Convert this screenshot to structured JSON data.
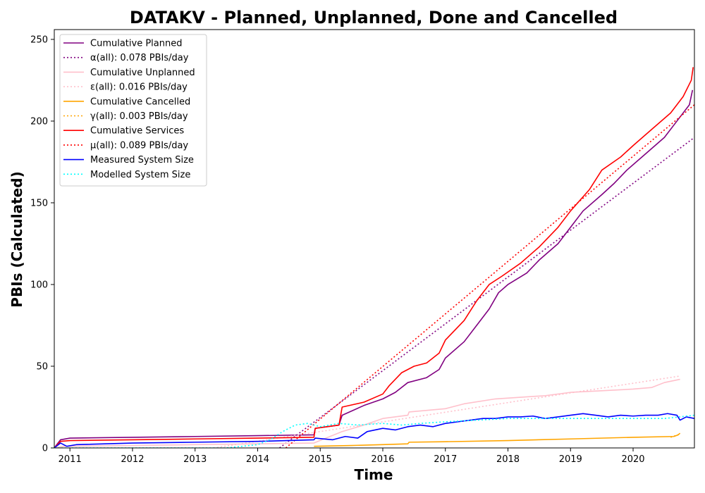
{
  "chart_data": {
    "type": "line",
    "title": "DATAKV - Planned, Unplanned, Done  and Cancelled",
    "xlabel": "Time",
    "ylabel": "PBIs (Calculated)",
    "xlim": [
      2010.75,
      2020.98
    ],
    "ylim": [
      0,
      256
    ],
    "x_ticks": [
      2011,
      2012,
      2013,
      2014,
      2015,
      2016,
      2017,
      2018,
      2019,
      2020
    ],
    "y_ticks": [
      0,
      50,
      100,
      150,
      200,
      250
    ],
    "legend_position": "upper left",
    "grid": false,
    "series": [
      {
        "name": "Cumulative Planned",
        "style": "solid",
        "color": "#800080",
        "x": [
          2010.75,
          2010.85,
          2011.0,
          2012.0,
          2013.0,
          2014.0,
          2014.9,
          2014.92,
          2015.3,
          2015.35,
          2015.7,
          2016.0,
          2016.2,
          2016.4,
          2016.7,
          2016.9,
          2017.0,
          2017.3,
          2017.5,
          2017.7,
          2017.85,
          2018.0,
          2018.3,
          2018.5,
          2018.8,
          2019.0,
          2019.2,
          2019.5,
          2019.7,
          2019.9,
          2020.2,
          2020.5,
          2020.7,
          2020.9,
          2020.95
        ],
        "y": [
          0,
          5,
          6,
          6.5,
          7,
          7.5,
          8,
          12,
          14,
          20,
          26,
          30,
          34,
          40,
          43,
          48,
          55,
          65,
          75,
          85,
          95,
          100,
          107,
          115,
          125,
          135,
          145,
          155,
          162,
          170,
          180,
          190,
          200,
          210,
          219
        ]
      },
      {
        "name": "α(all): 0.078 PBIs/day",
        "style": "dotted",
        "color": "#800080",
        "x": [
          2014.35,
          2020.98
        ],
        "y": [
          0,
          190
        ]
      },
      {
        "name": "Cumulative Unplanned",
        "style": "solid",
        "color": "#ffc0cb",
        "x": [
          2010.75,
          2010.9,
          2012.0,
          2013.0,
          2014.0,
          2014.9,
          2015.35,
          2015.7,
          2016.0,
          2016.4,
          2016.42,
          2017.0,
          2017.3,
          2017.8,
          2018.2,
          2018.6,
          2019.0,
          2019.5,
          2020.0,
          2020.3,
          2020.5,
          2020.75
        ],
        "y": [
          0,
          1,
          1.5,
          2,
          2.5,
          3,
          10,
          14,
          18,
          20,
          22,
          24,
          27,
          30,
          31,
          32,
          34,
          35,
          36,
          37,
          40,
          42
        ]
      },
      {
        "name": "ε(all): 0.016 PBIs/day",
        "style": "dotted",
        "color": "#ffc0cb",
        "x": [
          2013.3,
          2020.75
        ],
        "y": [
          0,
          44
        ]
      },
      {
        "name": "Cumulative Cancelled",
        "style": "solid",
        "color": "#ffa500",
        "x": [
          2014.9,
          2015.5,
          2016.0,
          2016.4,
          2016.42,
          2017.0,
          2018.0,
          2019.0,
          2020.0,
          2020.65,
          2020.72,
          2020.75
        ],
        "y": [
          1,
          1.5,
          2,
          2.5,
          3.5,
          3.8,
          4.5,
          5.5,
          6.5,
          7,
          8,
          9
        ]
      },
      {
        "name": "γ(all): 0.003 PBIs/day",
        "style": "dotted",
        "color": "#ffa500",
        "x": [
          2020.6,
          2020.75
        ],
        "y": [
          6.5,
          8.5
        ]
      },
      {
        "name": "Cumulative Services",
        "style": "solid",
        "color": "#ff0000",
        "x": [
          2010.75,
          2010.85,
          2011.0,
          2012.0,
          2013.0,
          2014.0,
          2014.9,
          2014.92,
          2015.3,
          2015.35,
          2015.7,
          2016.0,
          2016.1,
          2016.3,
          2016.5,
          2016.7,
          2016.9,
          2017.0,
          2017.3,
          2017.5,
          2017.7,
          2017.9,
          2018.2,
          2018.5,
          2018.8,
          2019.0,
          2019.3,
          2019.5,
          2019.8,
          2020.0,
          2020.3,
          2020.6,
          2020.8,
          2020.93,
          2020.96
        ],
        "y": [
          0,
          4,
          4.5,
          5,
          5.5,
          6,
          6.5,
          12,
          14,
          25,
          28,
          33,
          38,
          46,
          50,
          52,
          58,
          66,
          78,
          90,
          100,
          105,
          113,
          123,
          135,
          145,
          158,
          170,
          178,
          185,
          195,
          205,
          215,
          225,
          233
        ]
      },
      {
        "name": "μ(all): 0.089 PBIs/day",
        "style": "dotted",
        "color": "#ff0000",
        "x": [
          2014.45,
          2020.98
        ],
        "y": [
          0,
          210
        ]
      },
      {
        "name": "Measured System Size",
        "style": "solid",
        "color": "#0000ff",
        "x": [
          2010.75,
          2010.85,
          2010.95,
          2011.1,
          2012.0,
          2013.0,
          2014.0,
          2014.9,
          2014.92,
          2015.2,
          2015.4,
          2015.6,
          2015.75,
          2016.0,
          2016.2,
          2016.4,
          2016.6,
          2016.8,
          2017.0,
          2017.2,
          2017.4,
          2017.6,
          2017.8,
          2018.0,
          2018.2,
          2018.4,
          2018.6,
          2018.8,
          2019.0,
          2019.2,
          2019.4,
          2019.6,
          2019.8,
          2020.0,
          2020.2,
          2020.4,
          2020.55,
          2020.7,
          2020.75,
          2020.85,
          2020.98
        ],
        "y": [
          0,
          3,
          1,
          2,
          3,
          3.5,
          4,
          5,
          6,
          5,
          7,
          6,
          10,
          12,
          11,
          13,
          14,
          13,
          15,
          16,
          17,
          18,
          18,
          19,
          19,
          19.5,
          18,
          19,
          20,
          21,
          20,
          19,
          20,
          19.5,
          20,
          20,
          21,
          20,
          17,
          19,
          18
        ]
      },
      {
        "name": "Modelled System Size",
        "style": "dotted",
        "color": "#00ffff",
        "x": [
          2010.75,
          2013.5,
          2014.0,
          2014.2,
          2014.4,
          2014.6,
          2014.8,
          2015.0,
          2015.3,
          2015.6,
          2016.0,
          2016.3,
          2016.6,
          2017.0,
          2017.5,
          2018.0,
          2018.5,
          2019.0,
          2019.5,
          2020.0,
          2020.5,
          2020.98
        ],
        "y": [
          0,
          0,
          2,
          5,
          10,
          14,
          15,
          13,
          15,
          14,
          15,
          14,
          15,
          16,
          17,
          18,
          18,
          18,
          18,
          18,
          18,
          20
        ]
      }
    ]
  }
}
